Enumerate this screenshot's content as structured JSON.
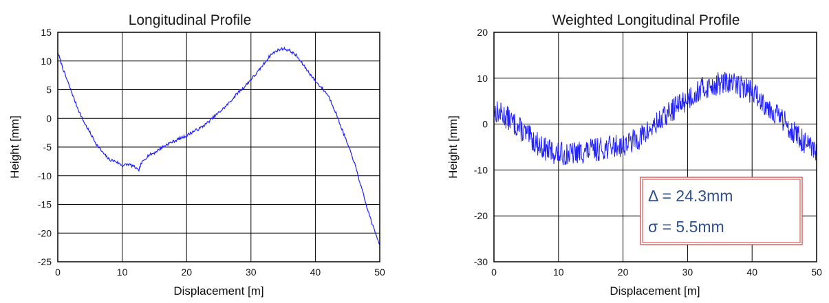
{
  "chart_data": [
    {
      "type": "line",
      "title": "Longitudinal Profile",
      "xlabel": "Displacement [m]",
      "ylabel": "Height [mm]",
      "xlim": [
        0,
        50
      ],
      "ylim": [
        -25,
        15
      ],
      "xticks": [
        0,
        10,
        20,
        30,
        40,
        50
      ],
      "yticks": [
        15,
        10,
        5,
        0,
        -5,
        -10,
        -15,
        -20,
        -25
      ],
      "grid": true,
      "line_color": "#1f1fff",
      "series": [
        {
          "x": [
            0,
            1,
            2,
            3,
            4,
            5,
            6,
            7,
            8,
            9,
            10,
            11,
            12,
            12.5,
            13,
            14,
            15,
            16,
            17,
            18,
            19,
            20,
            21,
            22,
            23,
            24,
            25,
            26,
            27,
            28,
            29,
            30,
            31,
            32,
            33,
            34,
            35,
            36,
            37,
            38,
            39,
            40,
            41,
            42,
            43,
            44,
            45,
            46,
            47,
            48,
            49,
            50
          ],
          "y": [
            11.5,
            8,
            5,
            2,
            -0.5,
            -2.5,
            -4.5,
            -6,
            -7.2,
            -7.5,
            -8.2,
            -8,
            -8.5,
            -9.2,
            -7.8,
            -6.5,
            -6,
            -5.2,
            -4.5,
            -4,
            -3.5,
            -3,
            -2.3,
            -1.8,
            -1,
            0,
            1,
            2,
            3.2,
            4.5,
            5.5,
            6.8,
            8,
            9.5,
            11,
            11.8,
            12.2,
            11.8,
            11,
            9.5,
            8,
            6.5,
            5.3,
            4,
            1.5,
            -1.5,
            -4.5,
            -7.5,
            -11.5,
            -15.5,
            -19,
            -22
          ]
        }
      ]
    },
    {
      "type": "line",
      "title": "Weighted Longitudinal Profile",
      "xlabel": "Displacement [m]",
      "ylabel": "Height [mm]",
      "xlim": [
        0,
        50
      ],
      "ylim": [
        -30,
        20
      ],
      "xticks": [
        0,
        10,
        20,
        30,
        40,
        50
      ],
      "yticks": [
        20,
        10,
        0,
        -10,
        -20,
        -30
      ],
      "grid": true,
      "line_color": "#1f1fff",
      "series": [
        {
          "x": [
            0,
            2,
            4,
            6,
            8,
            10,
            12,
            14,
            16,
            18,
            20,
            22,
            24,
            26,
            28,
            30,
            32,
            34,
            36,
            38,
            40,
            42,
            44,
            46,
            48,
            50
          ],
          "y": [
            3,
            1.5,
            -1,
            -3.5,
            -5.5,
            -6.5,
            -6.5,
            -6,
            -5.5,
            -5,
            -4.5,
            -3.5,
            -1.5,
            1,
            3.5,
            5.5,
            7.5,
            8.5,
            9,
            8.5,
            7,
            4.5,
            2,
            -1,
            -4,
            -6.5
          ]
        }
      ]
    }
  ],
  "annotations": {
    "delta": "Δ = 24.3mm",
    "sigma": "σ = 5.5mm",
    "border_color": "#d83a3a"
  }
}
